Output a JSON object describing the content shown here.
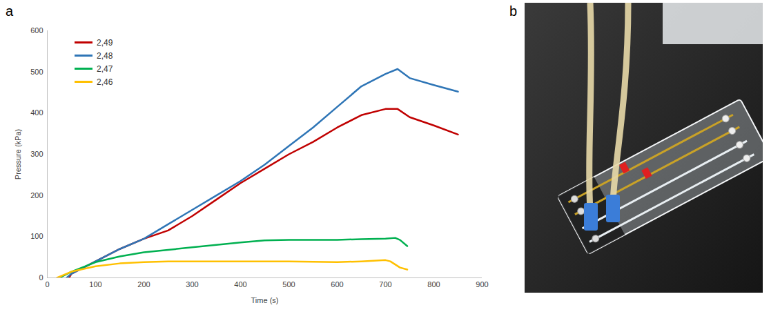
{
  "chart_data": {
    "type": "line",
    "panel": "a",
    "x_label": "Time (s)",
    "y_label": "Pressure (kPa)",
    "xlim": [
      0,
      900
    ],
    "xticks": [
      0,
      100,
      200,
      300,
      400,
      500,
      600,
      700,
      800,
      900
    ],
    "ylim": [
      0,
      600
    ],
    "yticks": [
      0,
      100,
      200,
      300,
      400,
      500,
      600
    ],
    "grid": false,
    "legend": "top-left",
    "series": [
      {
        "name": "2,49",
        "color": "#c00000",
        "x": [
          45,
          50,
          100,
          150,
          200,
          250,
          300,
          350,
          400,
          450,
          500,
          550,
          600,
          650,
          700,
          725,
          750,
          800,
          850
        ],
        "values": [
          0,
          10,
          40,
          70,
          95,
          115,
          150,
          190,
          230,
          265,
          300,
          330,
          365,
          395,
          410,
          410,
          390,
          370,
          348
        ]
      },
      {
        "name": "2,48",
        "color": "#2e75b6",
        "x": [
          40,
          50,
          100,
          150,
          200,
          250,
          300,
          350,
          400,
          450,
          500,
          550,
          600,
          650,
          700,
          725,
          750,
          800,
          850
        ],
        "values": [
          0,
          10,
          40,
          70,
          95,
          130,
          165,
          200,
          235,
          275,
          320,
          365,
          415,
          465,
          495,
          507,
          485,
          468,
          452
        ]
      },
      {
        "name": "2,47",
        "color": "#00b050",
        "x": [
          25,
          50,
          100,
          150,
          200,
          250,
          300,
          350,
          400,
          450,
          500,
          600,
          650,
          700,
          720,
          730,
          745
        ],
        "values": [
          0,
          15,
          38,
          52,
          62,
          68,
          74,
          80,
          86,
          91,
          92,
          92,
          94,
          95,
          97,
          92,
          77
        ]
      },
      {
        "name": "2,46",
        "color": "#ffc000",
        "x": [
          20,
          50,
          100,
          150,
          200,
          250,
          300,
          400,
          500,
          600,
          650,
          700,
          710,
          730,
          745
        ],
        "values": [
          0,
          15,
          28,
          35,
          38,
          40,
          40,
          40,
          40,
          38,
          40,
          43,
          40,
          25,
          20
        ]
      }
    ]
  },
  "photo": {
    "panel": "b"
  }
}
